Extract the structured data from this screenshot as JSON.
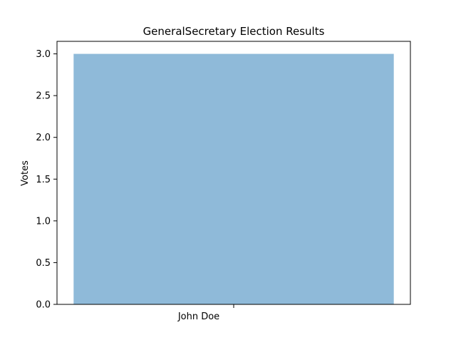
{
  "chart_data": {
    "type": "bar",
    "title": "GeneralSecretary Election Results",
    "xlabel": "",
    "ylabel": "Votes",
    "categories": [
      "John Doe"
    ],
    "values": [
      3
    ],
    "ylim": [
      0,
      3.15
    ],
    "yticks": [
      "0.0",
      "0.5",
      "1.0",
      "1.5",
      "2.0",
      "2.5",
      "3.0"
    ],
    "bar_color": "#8fbad9",
    "grid": false,
    "legend": "none"
  }
}
